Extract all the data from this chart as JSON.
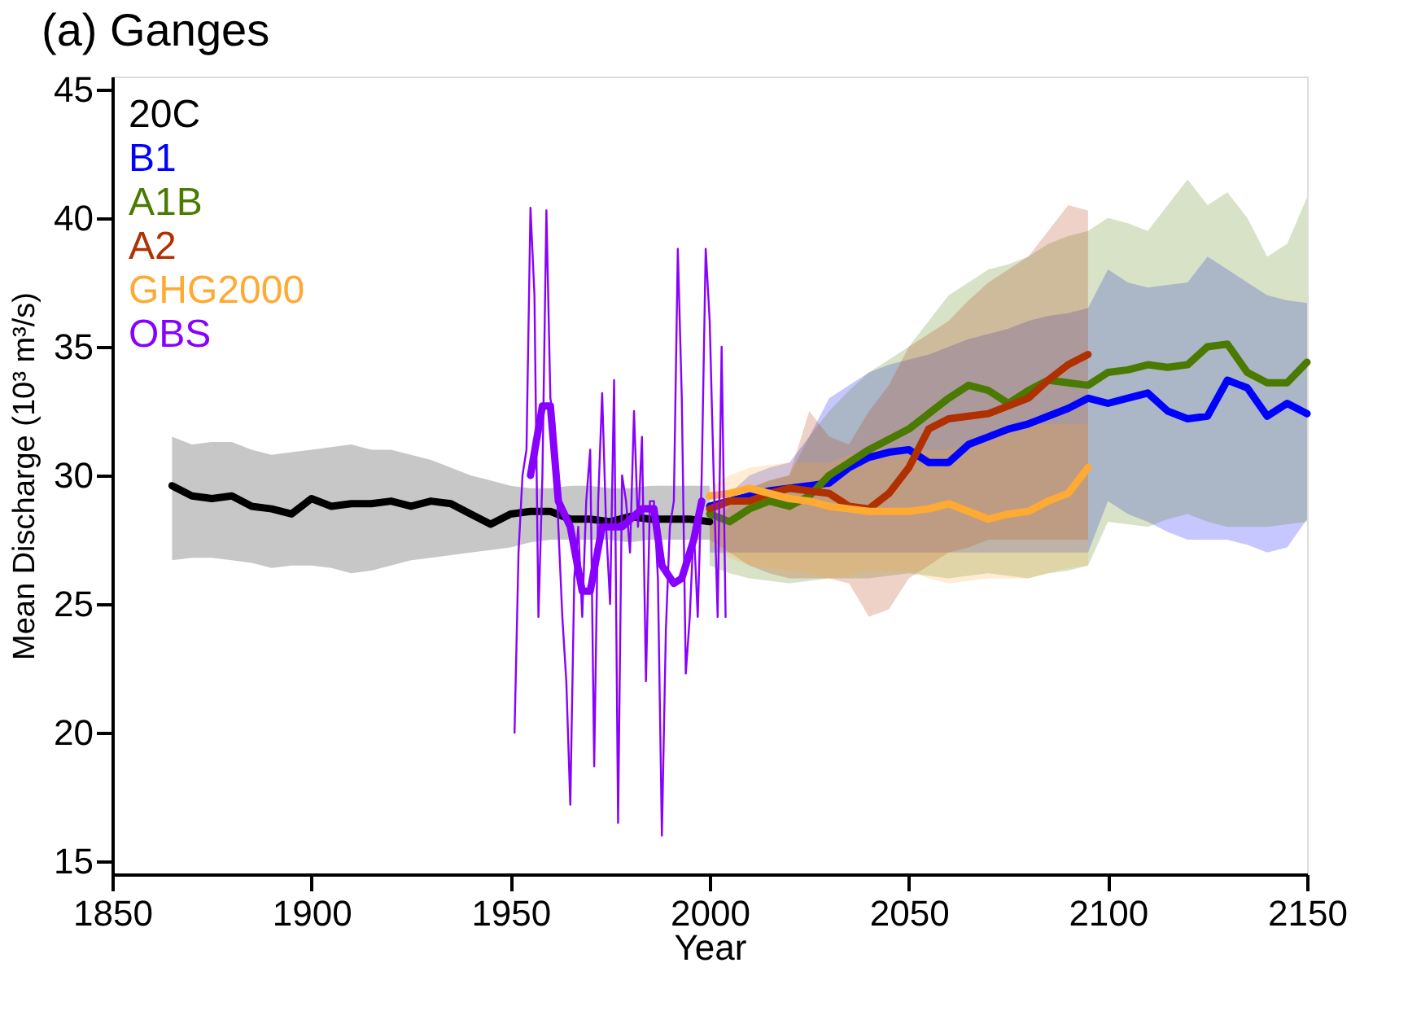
{
  "chart_data": {
    "type": "line",
    "title": "(a) Ganges",
    "xlabel": "Year",
    "ylabel": "Mean Discharge (10³ m³/s)",
    "xlim": [
      1850,
      2150
    ],
    "xticks": [
      1850,
      1900,
      1950,
      2000,
      2050,
      2100,
      2150
    ],
    "ylim": [
      14.5,
      45.5
    ],
    "yticks": [
      15,
      20,
      25,
      30,
      35,
      40,
      45
    ],
    "grid": false,
    "legend": "top left",
    "line_style": "solid",
    "series": [
      {
        "name": "20C",
        "color": "#000000",
        "x": [
          1865,
          1870,
          1875,
          1880,
          1885,
          1890,
          1895,
          1900,
          1905,
          1910,
          1915,
          1920,
          1925,
          1930,
          1935,
          1940,
          1945,
          1950,
          1955,
          1960,
          1965,
          1970,
          1975,
          1980,
          1985,
          1990,
          1995,
          2000
        ],
        "values": [
          29.6,
          29.2,
          29.1,
          29.2,
          28.8,
          28.7,
          28.5,
          29.1,
          28.8,
          28.9,
          28.9,
          29,
          28.8,
          29,
          28.9,
          28.5,
          28.1,
          28.5,
          28.6,
          28.6,
          28.3,
          28.3,
          28.2,
          28.4,
          28.3,
          28.3,
          28.3,
          28.2
        ],
        "upper": [
          31.5,
          31.2,
          31.3,
          31.3,
          31,
          30.8,
          30.9,
          31,
          31.1,
          31.2,
          31,
          31,
          30.8,
          30.6,
          30.3,
          30,
          29.8,
          29.6,
          29.5,
          29.5,
          29.6,
          29.6,
          29.5,
          29.5,
          29.6,
          29.6,
          29.6,
          29.6
        ],
        "lower": [
          26.7,
          26.8,
          26.8,
          26.7,
          26.6,
          26.4,
          26.5,
          26.5,
          26.4,
          26.2,
          26.3,
          26.5,
          26.7,
          26.8,
          26.9,
          27,
          27.1,
          27.2,
          27.4,
          27.5,
          27.5,
          27.5,
          27.5,
          27.4,
          27.5,
          27.5,
          27.5,
          27.5
        ]
      },
      {
        "name": "B1",
        "color": "#0000ff",
        "x": [
          2000,
          2005,
          2010,
          2015,
          2020,
          2025,
          2030,
          2035,
          2040,
          2045,
          2050,
          2055,
          2060,
          2065,
          2070,
          2075,
          2080,
          2085,
          2090,
          2095,
          2100,
          2105,
          2110,
          2115,
          2120,
          2125,
          2130,
          2135,
          2140,
          2145,
          2150
        ],
        "values": [
          28.8,
          29,
          29.2,
          29.4,
          29.5,
          29.6,
          29.7,
          30.3,
          30.7,
          30.9,
          31,
          30.5,
          30.5,
          31.2,
          31.5,
          31.8,
          32,
          32.3,
          32.6,
          33,
          32.8,
          33,
          33.2,
          32.5,
          32.2,
          32.3,
          33.7,
          33.4,
          32.3,
          32.8,
          32.4
        ],
        "upper": [
          28.5,
          29.3,
          30,
          30.3,
          30.5,
          31.5,
          33,
          33.5,
          34,
          34.3,
          34.5,
          34.7,
          35,
          35.3,
          35.5,
          35.7,
          36,
          36.2,
          36.3,
          36.5,
          38,
          37.5,
          37.3,
          37.4,
          37.5,
          38.5,
          38,
          37.5,
          37,
          36.8,
          36.7
        ],
        "lower": [
          27,
          27,
          27,
          27,
          27,
          27,
          27,
          27,
          27,
          27,
          27,
          27,
          27,
          27,
          27,
          27,
          27,
          27,
          27,
          27,
          29,
          28.5,
          28.2,
          27.8,
          27.5,
          27.5,
          27.5,
          27.3,
          27,
          27.2,
          28.3
        ]
      },
      {
        "name": "A1B",
        "color": "#4a7a00",
        "x": [
          2000,
          2005,
          2010,
          2015,
          2020,
          2025,
          2030,
          2035,
          2040,
          2045,
          2050,
          2055,
          2060,
          2065,
          2070,
          2075,
          2080,
          2085,
          2090,
          2095,
          2100,
          2105,
          2110,
          2115,
          2120,
          2125,
          2130,
          2135,
          2140,
          2145,
          2150
        ],
        "values": [
          28.5,
          28.2,
          28.7,
          29,
          28.8,
          29.2,
          30,
          30.5,
          31,
          31.4,
          31.8,
          32.4,
          33,
          33.5,
          33.3,
          32.8,
          33.3,
          33.7,
          33.6,
          33.5,
          34,
          34.1,
          34.3,
          34.2,
          34.3,
          35,
          35.1,
          34,
          33.6,
          33.6,
          34.4
        ],
        "upper": [
          28,
          28.8,
          29.5,
          29.8,
          30,
          31.5,
          32.5,
          33.3,
          34,
          34.5,
          35,
          36,
          37,
          37.5,
          38,
          38.2,
          38.5,
          39,
          39.3,
          39.5,
          40,
          39.8,
          39.5,
          40.5,
          41.5,
          40.5,
          41,
          40,
          38.5,
          39,
          40.8
        ],
        "lower": [
          26.5,
          26.2,
          26,
          25.9,
          25.8,
          25.9,
          26,
          26,
          26,
          26.1,
          26.2,
          26.1,
          26,
          26.1,
          26.2,
          26.1,
          26,
          26.2,
          26.3,
          26.5,
          28.2,
          28.1,
          28,
          28.3,
          28.5,
          28.2,
          28,
          28,
          28,
          28.1,
          28.2
        ]
      },
      {
        "name": "A2",
        "color": "#b03000",
        "x": [
          2000,
          2005,
          2010,
          2015,
          2020,
          2025,
          2030,
          2035,
          2040,
          2045,
          2050,
          2055,
          2060,
          2065,
          2070,
          2075,
          2080,
          2085,
          2090,
          2095
        ],
        "values": [
          28.7,
          29,
          29,
          29.3,
          29.5,
          29.4,
          29.3,
          28.8,
          28.7,
          29.3,
          30.3,
          31.8,
          32.2,
          32.3,
          32.4,
          32.7,
          33,
          33.7,
          34.3,
          34.7
        ],
        "upper": [
          28.5,
          29,
          29.5,
          29.8,
          30,
          32.5,
          31.5,
          31.2,
          32.5,
          33.5,
          35,
          35.5,
          36,
          36.8,
          37.5,
          38,
          38.5,
          39.5,
          40.5,
          40.3
        ],
        "lower": [
          27.5,
          27,
          26.5,
          26.2,
          26,
          26,
          26,
          25.8,
          24.5,
          24.8,
          26,
          26.5,
          27,
          27.2,
          27.5,
          27.5,
          27.5,
          27.5,
          27.5,
          27.5
        ]
      },
      {
        "name": "GHG2000",
        "color": "#ffaa33",
        "x": [
          2000,
          2005,
          2010,
          2015,
          2020,
          2025,
          2030,
          2035,
          2040,
          2045,
          2050,
          2055,
          2060,
          2065,
          2070,
          2075,
          2080,
          2085,
          2090,
          2095
        ],
        "values": [
          29.2,
          29.3,
          29.5,
          29.3,
          29.1,
          29,
          28.8,
          28.7,
          28.6,
          28.6,
          28.6,
          28.7,
          28.9,
          28.6,
          28.3,
          28.5,
          28.6,
          29,
          29.3,
          30.3
        ],
        "upper": [
          29.5,
          30,
          30.3,
          30.4,
          30.5,
          30.5,
          30.5,
          30.8,
          31,
          31,
          31,
          31,
          31,
          31.2,
          31.5,
          31.8,
          32,
          32,
          32,
          32
        ],
        "lower": [
          27.2,
          26.8,
          26.5,
          26.4,
          26.3,
          26.2,
          26,
          26.1,
          26.3,
          26.3,
          26.3,
          26,
          25.8,
          25.9,
          26,
          26,
          26,
          26.2,
          26.4,
          26.5
        ]
      },
      {
        "color": "#8800ff",
        "x": [
          1951,
          1952,
          1953,
          1954,
          1955,
          1956,
          1957,
          1958,
          1959,
          1960,
          1961,
          1962,
          1963,
          1964,
          1965,
          1966,
          1967,
          1968,
          1969,
          1970,
          1971,
          1972,
          1973,
          1974,
          1975,
          1976,
          1977,
          1978,
          1979,
          1980,
          1981,
          1982,
          1983,
          1984,
          1985,
          1986,
          1987,
          1988,
          1989,
          1990,
          1991,
          1992,
          1993,
          1994,
          1995,
          1996,
          1997,
          1998,
          1999,
          2000,
          2001,
          2002,
          2003,
          2004
        ],
        "values": [
          20,
          27,
          30,
          31,
          40.4,
          37,
          24.5,
          30,
          40.3,
          33,
          32,
          28,
          24.5,
          22,
          17.2,
          26,
          28,
          24.5,
          29,
          31,
          18.7,
          29,
          33.2,
          28,
          25,
          33.7,
          16.5,
          30,
          29,
          27,
          32.5,
          28,
          31.5,
          22,
          29,
          29,
          26,
          16,
          24,
          28,
          29,
          38.8,
          33,
          22.3,
          24.5,
          28,
          24.5,
          30,
          38.8,
          36,
          30,
          24.5,
          35,
          24.5
        ]
      },
      {
        "name": "OBS",
        "color": "#8800ff",
        "x": [
          1955,
          1958,
          1960,
          1962,
          1965,
          1968,
          1970,
          1973,
          1978,
          1983,
          1986,
          1988,
          1991,
          1993,
          1996,
          1998
        ],
        "values": [
          30,
          32.7,
          32.7,
          29,
          28,
          25.5,
          25.5,
          28,
          28,
          28.7,
          28.7,
          26.5,
          25.8,
          26,
          27.5,
          29
        ]
      }
    ]
  }
}
